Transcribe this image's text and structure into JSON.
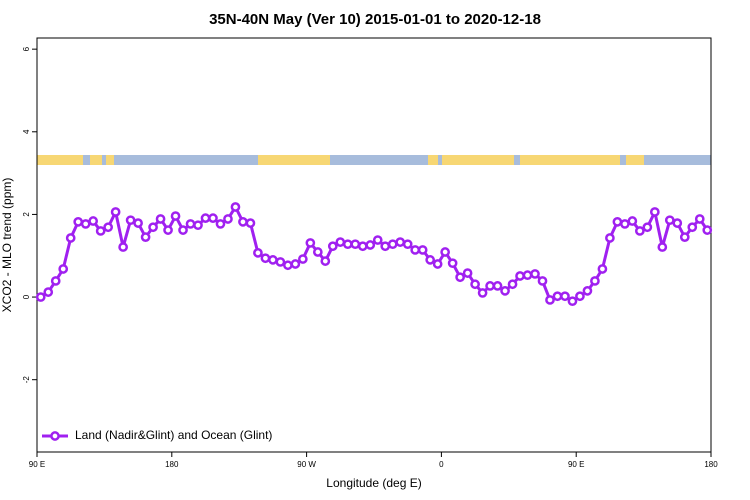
{
  "chart_data": {
    "type": "line",
    "title": "35N-40N May (Ver 10)   2015-01-01 to 2020-12-18",
    "x_label": "Longitude (deg E)",
    "y_label": "XCO2 - MLO trend (ppm)",
    "xlim": [
      90,
      540
    ],
    "ylim": [
      -3.75,
      6.27
    ],
    "xticks": [
      {
        "value": 90,
        "label": "90 E"
      },
      180,
      {
        "value": 270,
        "label": "90 W"
      },
      {
        "value": 360,
        "label": "0"
      },
      {
        "value": 450,
        "label": "90 E"
      },
      {
        "value": 540,
        "label": "180"
      }
    ],
    "yticks": [
      -2,
      0,
      2,
      4,
      6
    ],
    "legend": "bottom-left",
    "x": [
      92.5,
      97.5,
      102.5,
      107.5,
      112.5,
      117.5,
      122.5,
      127.5,
      132.5,
      137.5,
      142.5,
      147.5,
      152.5,
      157.5,
      162.5,
      167.5,
      172.5,
      177.5,
      182.5,
      187.5,
      192.5,
      197.5,
      202.5,
      207.5,
      212.5,
      217.5,
      222.5,
      227.5,
      232.5,
      237.5,
      242.5,
      247.5,
      252.5,
      257.5,
      262.5,
      267.5,
      272.5,
      277.5,
      282.5,
      287.5,
      292.5,
      297.5,
      302.5,
      307.5,
      312.5,
      317.5,
      322.5,
      327.5,
      332.5,
      337.5,
      342.5,
      347.5,
      352.5,
      357.5,
      362.5,
      367.5,
      372.5,
      377.5,
      382.5,
      387.5,
      392.5,
      397.5,
      402.5,
      407.5,
      412.5,
      417.5,
      422.5,
      427.5,
      432.5,
      437.5,
      442.5,
      447.5,
      452.5,
      457.5,
      462.5,
      467.5,
      472.5,
      477.5,
      482.5,
      487.5,
      492.5,
      497.5,
      502.5,
      507.5,
      512.5,
      517.5,
      522.5,
      527.5,
      532.5,
      537.5
    ],
    "series": [
      {
        "name": "Land (Nadir&Glint) and Ocean (Glint)",
        "color": "#a020f0",
        "values": [
          0.0,
          0.12,
          0.39,
          0.68,
          1.43,
          1.82,
          1.77,
          1.84,
          1.6,
          1.69,
          2.06,
          1.21,
          1.86,
          1.79,
          1.45,
          1.69,
          1.89,
          1.62,
          1.96,
          1.62,
          1.77,
          1.74,
          1.91,
          1.91,
          1.77,
          1.89,
          2.18,
          1.82,
          1.79,
          1.07,
          0.94,
          0.9,
          0.85,
          0.77,
          0.8,
          0.92,
          1.31,
          1.09,
          0.87,
          1.23,
          1.33,
          1.28,
          1.28,
          1.23,
          1.26,
          1.38,
          1.23,
          1.28,
          1.33,
          1.28,
          1.14,
          1.14,
          0.9,
          0.8,
          1.09,
          0.82,
          0.48,
          0.58,
          0.31,
          0.1,
          0.27,
          0.27,
          0.15,
          0.31,
          0.51,
          0.53,
          0.56,
          0.39,
          -0.07,
          0.02,
          0.02,
          -0.1,
          0.02,
          0.15,
          0.39,
          0.68,
          1.43,
          1.82,
          1.77,
          1.84,
          1.6,
          1.69,
          2.06,
          1.21,
          1.86,
          1.79,
          1.45,
          1.69,
          1.89,
          1.62
        ]
      }
    ]
  }
}
